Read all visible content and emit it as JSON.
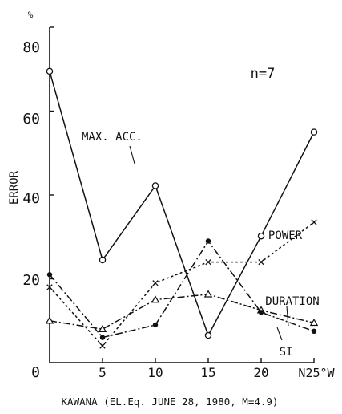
{
  "chart_data": {
    "type": "line",
    "x": [
      0,
      5,
      10,
      15,
      20,
      25
    ],
    "xticks": [
      "0",
      "5",
      "10",
      "15",
      "20",
      "N25°W"
    ],
    "yticks": [
      "0",
      "20",
      "40",
      "60",
      "80"
    ],
    "yunit": "%",
    "ylabel": "ERROR",
    "xlabel": "KAWANA (EL.Eq. JUNE 28, 1980, M=4.9)",
    "annotation": "n=7",
    "xlim": [
      0,
      25
    ],
    "ylim": [
      0,
      80
    ],
    "grid": false,
    "series": [
      {
        "name": "MAX. ACC.",
        "values": [
          69.5,
          24.5,
          42.2,
          6.5,
          30.2,
          55
        ],
        "marker": "open-circle",
        "dash": "solid"
      },
      {
        "name": "POWER",
        "values": [
          18,
          4,
          19,
          24,
          24,
          33.5
        ],
        "marker": "cross",
        "dash": "dotted"
      },
      {
        "name": "DURATION",
        "values": [
          10,
          8,
          15,
          16.3,
          12.5,
          9.5
        ],
        "marker": "open-triangle",
        "dash": "dash-dot"
      },
      {
        "name": "SI",
        "values": [
          21,
          6,
          9,
          29,
          12,
          7.5
        ],
        "marker": "filled-circle",
        "dash": "dash-dot"
      }
    ]
  }
}
